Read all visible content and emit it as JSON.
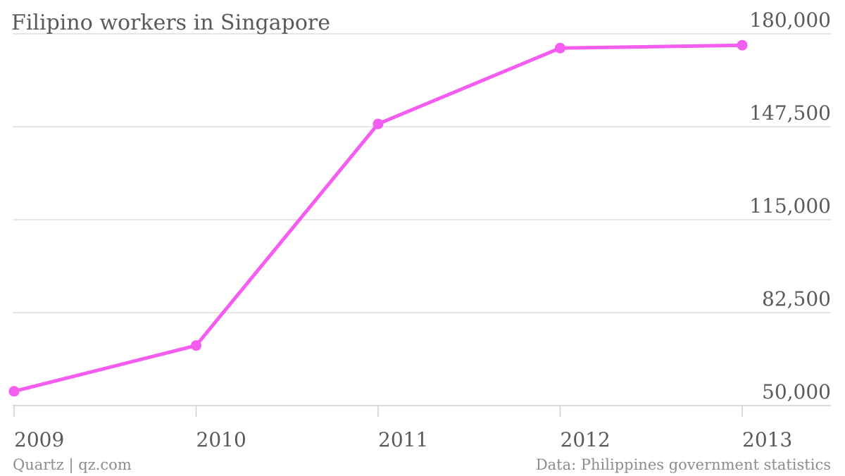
{
  "chart_data": {
    "type": "line",
    "title": "Filipino workers in Singapore",
    "xlabel": "",
    "ylabel": "",
    "categories": [
      "2009",
      "2010",
      "2011",
      "2012",
      "2013"
    ],
    "series": [
      {
        "values": [
          55000,
          71000,
          148500,
          175000,
          176000
        ],
        "color": "#f55cf0"
      }
    ],
    "ylim": [
      50000,
      180000
    ],
    "yticks": [
      "50,000",
      "82,500",
      "115,000",
      "147,500",
      "180,000"
    ],
    "ytick_values": [
      50000,
      82500,
      115000,
      147500,
      180000
    ],
    "grid": true,
    "legend": "none",
    "y_axis_side": "right"
  },
  "footer": {
    "source_left": "Quartz | qz.com",
    "source_right": "Data: Philippines government statistics"
  }
}
